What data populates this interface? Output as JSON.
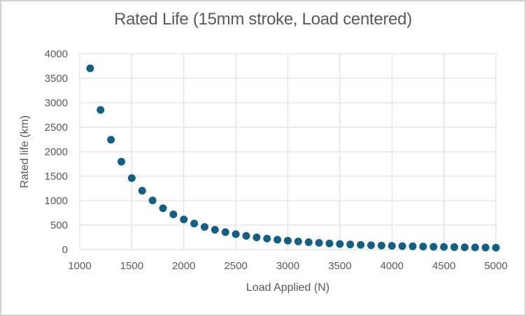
{
  "title": "Rated Life (15mm stroke, Load centered)",
  "chart_data": {
    "type": "scatter",
    "title": "Rated Life (15mm stroke, Load centered)",
    "xlabel": "Load Applied (N)",
    "ylabel": "Rated life (km)",
    "xlim": [
      1000,
      5000
    ],
    "ylim": [
      0,
      4000
    ],
    "xticks": [
      1000,
      1500,
      2000,
      2500,
      3000,
      3500,
      4000,
      4500,
      5000
    ],
    "yticks": [
      0,
      500,
      1000,
      1500,
      2000,
      2500,
      3000,
      3500,
      4000
    ],
    "grid": true,
    "legend": false,
    "series": [
      {
        "x": [
          1100,
          1200,
          1300,
          1400,
          1500,
          1600,
          1700,
          1800,
          1900,
          2000,
          2100,
          2200,
          2300,
          2400,
          2500,
          2600,
          2700,
          2800,
          2900,
          3000,
          3100,
          3200,
          3300,
          3400,
          3500,
          3600,
          3700,
          3800,
          3900,
          4000,
          4100,
          4200,
          4300,
          4400,
          4500,
          4600,
          4700,
          4800,
          4900,
          5000
        ],
        "y": [
          3704,
          2853,
          2244,
          1797,
          1461,
          1204,
          1004,
          845,
          719,
          616,
          532,
          463,
          405,
          357,
          316,
          281,
          250,
          225,
          202,
          183,
          166,
          150,
          137,
          125,
          115,
          106,
          97,
          90,
          83,
          77,
          72,
          67,
          62,
          58,
          54,
          51,
          47,
          45,
          42,
          39
        ]
      }
    ],
    "colors": {
      "marker": "#156082",
      "gridline": "#d9d9d9",
      "axis_text": "#595959",
      "title_text": "#595959",
      "border": "#d2d2d2",
      "background": "#ffffff"
    }
  }
}
